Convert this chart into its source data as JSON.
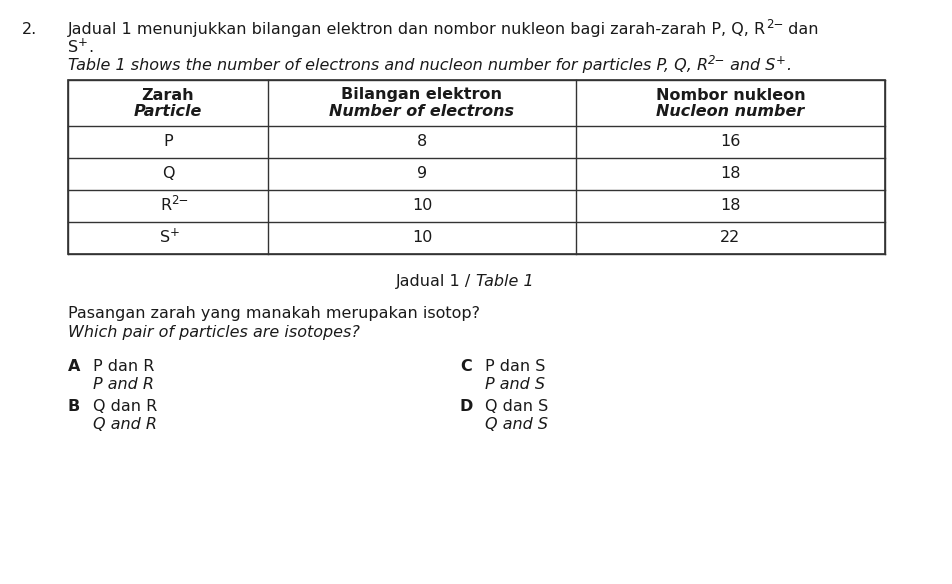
{
  "question_number": "2.",
  "col1_header_malay": "Zarah",
  "col1_header_english": "Particle",
  "col2_header_malay": "Bilangan elektron",
  "col2_header_english": "Number of electrons",
  "col3_header_malay": "Nombor nukleon",
  "col3_header_english": "Nucleon number",
  "rows": [
    {
      "particle": "P",
      "particle_sup": "",
      "electrons": "8",
      "nucleon": "16"
    },
    {
      "particle": "Q",
      "particle_sup": "",
      "electrons": "9",
      "nucleon": "18"
    },
    {
      "particle": "R",
      "particle_sup": "2−",
      "electrons": "10",
      "nucleon": "18"
    },
    {
      "particle": "S",
      "particle_sup": "+",
      "electrons": "10",
      "nucleon": "22"
    }
  ],
  "table_caption_malay": "Jadual 1",
  "table_caption_sep": " / ",
  "table_caption_english": "Table 1",
  "question_malay": "Pasangan zarah yang manakah merupakan isotop?",
  "question_english": "Which pair of particles are isotopes?",
  "options": [
    {
      "letter": "A",
      "malay": "P dan R",
      "english": "P and R"
    },
    {
      "letter": "B",
      "malay": "Q dan R",
      "english": "Q and R"
    },
    {
      "letter": "C",
      "malay": "P dan S",
      "english": "P and S"
    },
    {
      "letter": "D",
      "malay": "Q dan S",
      "english": "Q and S"
    }
  ],
  "bg_color": "#ffffff",
  "text_color": "#1a1a1a",
  "table_border_color": "#333333",
  "font_size": 11.5,
  "font_family": "DejaVu Sans"
}
